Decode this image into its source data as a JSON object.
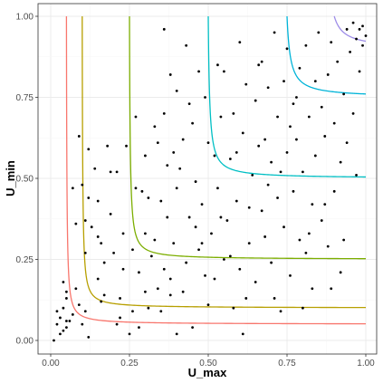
{
  "chart_data": {
    "type": "scatter",
    "title": "",
    "xlabel": "U_max",
    "ylabel": "U_min",
    "xlim": [
      0,
      1
    ],
    "ylim": [
      0,
      1
    ],
    "x_ticks": [
      "0.00",
      "0.25",
      "0.50",
      "0.75",
      "1.00"
    ],
    "y_ticks": [
      "0.00",
      "0.25",
      "0.50",
      "0.75",
      "1.00"
    ],
    "grid": true,
    "legend": "none",
    "curves": [
      {
        "level": 0.05,
        "color": "#f8766d"
      },
      {
        "level": 0.1,
        "color": "#b79f00"
      },
      {
        "level": 0.25,
        "color": "#7cae00"
      },
      {
        "level": 0.5,
        "color": "#00bfc4"
      },
      {
        "level": 0.75,
        "color": "#00b4d8"
      },
      {
        "level": 0.9,
        "color": "#9d8ce8"
      }
    ],
    "points_color": "#000000",
    "points": [
      [
        0.01,
        0.0
      ],
      [
        0.02,
        0.05
      ],
      [
        0.02,
        0.09
      ],
      [
        0.03,
        0.02
      ],
      [
        0.03,
        0.07
      ],
      [
        0.04,
        0.03
      ],
      [
        0.04,
        0.1
      ],
      [
        0.04,
        0.18
      ],
      [
        0.05,
        0.04
      ],
      [
        0.05,
        0.06
      ],
      [
        0.05,
        0.13
      ],
      [
        0.05,
        0.15
      ],
      [
        0.06,
        0.06
      ],
      [
        0.07,
        0.08
      ],
      [
        0.07,
        0.47
      ],
      [
        0.08,
        0.16
      ],
      [
        0.08,
        0.36
      ],
      [
        0.09,
        0.11
      ],
      [
        0.09,
        0.63
      ],
      [
        0.1,
        0.48
      ],
      [
        0.1,
        0.05
      ],
      [
        0.11,
        0.09
      ],
      [
        0.11,
        0.37
      ],
      [
        0.12,
        0.01
      ],
      [
        0.12,
        0.59
      ],
      [
        0.13,
        0.35
      ],
      [
        0.14,
        0.53
      ],
      [
        0.15,
        0.43
      ],
      [
        0.15,
        0.32
      ],
      [
        0.16,
        0.12
      ],
      [
        0.16,
        0.3
      ],
      [
        0.17,
        0.24
      ],
      [
        0.18,
        0.6
      ],
      [
        0.19,
        0.52
      ],
      [
        0.2,
        0.27
      ],
      [
        0.21,
        0.05
      ],
      [
        0.21,
        0.52
      ],
      [
        0.22,
        0.13
      ],
      [
        0.23,
        0.22
      ],
      [
        0.24,
        0.6
      ],
      [
        0.25,
        0.02
      ],
      [
        0.26,
        0.09
      ],
      [
        0.27,
        0.47
      ],
      [
        0.28,
        0.21
      ],
      [
        0.29,
        0.46
      ],
      [
        0.3,
        0.15
      ],
      [
        0.3,
        0.57
      ],
      [
        0.31,
        0.1
      ],
      [
        0.32,
        0.26
      ],
      [
        0.33,
        0.31
      ],
      [
        0.33,
        0.66
      ],
      [
        0.34,
        0.16
      ],
      [
        0.35,
        0.43
      ],
      [
        0.35,
        0.09
      ],
      [
        0.36,
        0.7
      ],
      [
        0.36,
        0.22
      ],
      [
        0.37,
        0.54
      ],
      [
        0.37,
        0.38
      ],
      [
        0.38,
        0.14
      ],
      [
        0.38,
        0.82
      ],
      [
        0.39,
        0.58
      ],
      [
        0.39,
        0.3
      ],
      [
        0.4,
        0.77
      ],
      [
        0.4,
        0.47
      ],
      [
        0.41,
        0.53
      ],
      [
        0.42,
        0.15
      ],
      [
        0.42,
        0.62
      ],
      [
        0.43,
        0.24
      ],
      [
        0.43,
        0.91
      ],
      [
        0.44,
        0.38
      ],
      [
        0.45,
        0.67
      ],
      [
        0.45,
        0.04
      ],
      [
        0.46,
        0.49
      ],
      [
        0.47,
        0.28
      ],
      [
        0.47,
        0.83
      ],
      [
        0.48,
        0.42
      ],
      [
        0.49,
        0.2
      ],
      [
        0.49,
        0.75
      ],
      [
        0.5,
        0.61
      ],
      [
        0.51,
        0.33
      ],
      [
        0.52,
        0.57
      ],
      [
        0.52,
        0.19
      ],
      [
        0.53,
        0.47
      ],
      [
        0.54,
        0.69
      ],
      [
        0.55,
        0.25
      ],
      [
        0.55,
        0.83
      ],
      [
        0.56,
        0.37
      ],
      [
        0.57,
        0.56
      ],
      [
        0.58,
        0.1
      ],
      [
        0.58,
        0.7
      ],
      [
        0.59,
        0.43
      ],
      [
        0.6,
        0.92
      ],
      [
        0.6,
        0.22
      ],
      [
        0.61,
        0.64
      ],
      [
        0.62,
        0.13
      ],
      [
        0.62,
        0.79
      ],
      [
        0.63,
        0.3
      ],
      [
        0.64,
        0.51
      ],
      [
        0.65,
        0.74
      ],
      [
        0.65,
        0.18
      ],
      [
        0.66,
        0.85
      ],
      [
        0.67,
        0.4
      ],
      [
        0.68,
        0.62
      ],
      [
        0.68,
        0.32
      ],
      [
        0.69,
        0.78
      ],
      [
        0.7,
        0.24
      ],
      [
        0.7,
        0.55
      ],
      [
        0.71,
        0.95
      ],
      [
        0.72,
        0.44
      ],
      [
        0.72,
        0.69
      ],
      [
        0.73,
        0.09
      ],
      [
        0.74,
        0.8
      ],
      [
        0.74,
        0.35
      ],
      [
        0.75,
        0.9
      ],
      [
        0.75,
        0.58
      ],
      [
        0.76,
        0.2
      ],
      [
        0.77,
        0.73
      ],
      [
        0.77,
        0.46
      ],
      [
        0.78,
        0.62
      ],
      [
        0.79,
        0.31
      ],
      [
        0.79,
        0.84
      ],
      [
        0.8,
        0.52
      ],
      [
        0.81,
        0.91
      ],
      [
        0.81,
        0.27
      ],
      [
        0.82,
        0.69
      ],
      [
        0.83,
        0.42
      ],
      [
        0.84,
        0.8
      ],
      [
        0.84,
        0.57
      ],
      [
        0.85,
        0.95
      ],
      [
        0.86,
        0.37
      ],
      [
        0.86,
        0.72
      ],
      [
        0.87,
        0.63
      ],
      [
        0.88,
        0.82
      ],
      [
        0.88,
        0.29
      ],
      [
        0.89,
        0.92
      ],
      [
        0.9,
        0.46
      ],
      [
        0.9,
        0.67
      ],
      [
        0.91,
        0.86
      ],
      [
        0.92,
        0.55
      ],
      [
        0.92,
        0.21
      ],
      [
        0.93,
        0.76
      ],
      [
        0.94,
        0.96
      ],
      [
        0.94,
        0.61
      ],
      [
        0.95,
        0.89
      ],
      [
        0.96,
        0.7
      ],
      [
        0.96,
        0.98
      ],
      [
        0.97,
        0.93
      ],
      [
        0.98,
        0.83
      ],
      [
        0.98,
        0.96
      ],
      [
        0.99,
        0.91
      ],
      [
        0.99,
        0.97
      ],
      [
        1.0,
        0.94
      ],
      [
        0.36,
        0.96
      ],
      [
        0.53,
        0.85
      ],
      [
        0.27,
        0.69
      ],
      [
        0.19,
        0.39
      ],
      [
        0.3,
        0.33
      ],
      [
        0.44,
        0.73
      ],
      [
        0.31,
        0.44
      ],
      [
        0.22,
        0.07
      ],
      [
        0.57,
        0.26
      ],
      [
        0.63,
        0.41
      ],
      [
        0.66,
        0.6
      ],
      [
        0.78,
        0.75
      ],
      [
        0.83,
        0.16
      ],
      [
        0.71,
        0.13
      ],
      [
        0.61,
        0.02
      ],
      [
        0.5,
        0.11
      ],
      [
        0.46,
        0.35
      ],
      [
        0.38,
        0.19
      ],
      [
        0.34,
        0.61
      ],
      [
        0.26,
        0.28
      ],
      [
        0.15,
        0.19
      ],
      [
        0.12,
        0.44
      ],
      [
        0.11,
        0.27
      ],
      [
        0.17,
        0.14
      ],
      [
        0.23,
        0.33
      ],
      [
        0.28,
        0.04
      ],
      [
        0.4,
        0.02
      ],
      [
        0.48,
        0.3
      ],
      [
        0.54,
        0.38
      ],
      [
        0.59,
        0.58
      ],
      [
        0.67,
        0.86
      ],
      [
        0.73,
        0.52
      ],
      [
        0.8,
        0.1
      ],
      [
        0.87,
        0.42
      ],
      [
        0.93,
        0.31
      ],
      [
        0.97,
        0.51
      ],
      [
        0.89,
        0.16
      ],
      [
        0.82,
        0.33
      ],
      [
        0.76,
        0.66
      ],
      [
        0.69,
        0.48
      ]
    ]
  }
}
